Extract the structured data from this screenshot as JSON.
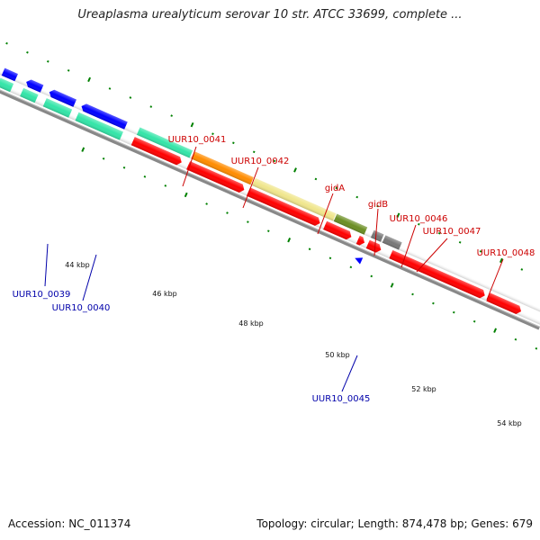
{
  "title": "Ureaplasma urealyticum serovar 10 str. ATCC 33699, complete ...",
  "footer": {
    "accession": "Accession: NC_011374",
    "summary": "Topology: circular; Length: 874,478 bp; Genes: 679"
  },
  "axis_labels": [
    "44 kbp",
    "46 kbp",
    "48 kbp",
    "50 kbp",
    "52 kbp",
    "54 kbp"
  ],
  "gene_labels": {
    "uur10_0041": "UUR10_0041",
    "uur10_0042": "UUR10_0042",
    "gida": "gidA",
    "gidb": "gidB",
    "uur10_0046": "UUR10_0046",
    "uur10_0047": "UUR10_0047",
    "uur10_0048": "UUR10_0048",
    "uur10_0039": "UUR10_0039",
    "uur10_0040": "UUR10_0040",
    "uur10_0045": "UUR10_0045"
  },
  "colors": {
    "forward_gene": "#ff0000",
    "reverse_gene": "#0000ff",
    "cds_teal": "#33e5a8",
    "cds_orange": "#ff8c00",
    "cds_khaki": "#f0e68c",
    "cds_olive": "#6b8e23",
    "cds_gray": "#777777",
    "backbone": "#888888",
    "tick": "#008000",
    "forward_label": "#cc0000",
    "reverse_label": "#0000aa"
  }
}
